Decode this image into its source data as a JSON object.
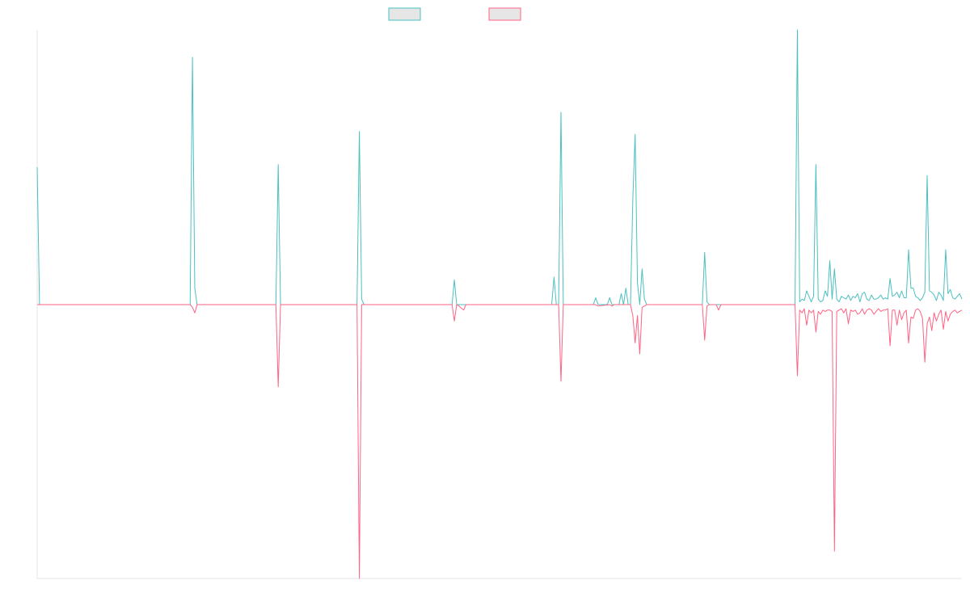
{
  "chart_data": {
    "type": "line",
    "title": "",
    "xlabel": "",
    "ylabel": "",
    "legend": {
      "placement": "top-center"
    },
    "grid": false,
    "colors": {
      "series_a": "#4bc0c0",
      "series_b": "#ff6384",
      "axis": "#e6e6e6",
      "legend_fill": "#e6e6e6"
    },
    "ylim": [
      -1,
      1
    ],
    "x_count": 400,
    "series": [
      {
        "values": [
          [
            0,
            0.5
          ],
          [
            1,
            0
          ],
          [
            66,
            0
          ],
          [
            67,
            0.9
          ],
          [
            68,
            0.06
          ],
          [
            69,
            0
          ],
          [
            103,
            0
          ],
          [
            104,
            0.51
          ],
          [
            105,
            0
          ],
          [
            138,
            0
          ],
          [
            139,
            0.63
          ],
          [
            140,
            0.02
          ],
          [
            141,
            0
          ],
          [
            179,
            0
          ],
          [
            180,
            0.09
          ],
          [
            181,
            0
          ],
          [
            222,
            0
          ],
          [
            223,
            0.1
          ],
          [
            224,
            0
          ],
          [
            225,
            0
          ],
          [
            226,
            0.7
          ],
          [
            227,
            0
          ],
          [
            240,
            0
          ],
          [
            241,
            0.025
          ],
          [
            242,
            0
          ],
          [
            246,
            0
          ],
          [
            247,
            0.025
          ],
          [
            248,
            0
          ],
          [
            251,
            0
          ],
          [
            252,
            0.04
          ],
          [
            253,
            0
          ],
          [
            254,
            0.06
          ],
          [
            255,
            0
          ],
          [
            256,
            0
          ],
          [
            257,
            0.38
          ],
          [
            258,
            0.62
          ],
          [
            259,
            0.08
          ],
          [
            260,
            0
          ],
          [
            261,
            0.13
          ],
          [
            262,
            0.02
          ],
          [
            263,
            0
          ],
          [
            287,
            0
          ],
          [
            288,
            0.19
          ],
          [
            289,
            0.01
          ],
          [
            290,
            0
          ],
          [
            327,
            0
          ],
          [
            328,
            1.0
          ],
          [
            329,
            0.01
          ],
          [
            330,
            0.02
          ],
          [
            331,
            0.015
          ],
          [
            332,
            0.05
          ],
          [
            333,
            0.03
          ],
          [
            334,
            0.01
          ],
          [
            335,
            0.03
          ],
          [
            336,
            0.51
          ],
          [
            337,
            0.02
          ],
          [
            338,
            0.01
          ],
          [
            339,
            0.015
          ],
          [
            340,
            0.05
          ],
          [
            341,
            0.03
          ],
          [
            342,
            0.16
          ],
          [
            343,
            0.02
          ],
          [
            344,
            0.13
          ],
          [
            345,
            0.02
          ],
          [
            346,
            0.01
          ],
          [
            347,
            0.03
          ],
          [
            348,
            0.025
          ],
          [
            349,
            0.02
          ],
          [
            350,
            0.035
          ],
          [
            351,
            0.015
          ],
          [
            352,
            0.03
          ],
          [
            353,
            0.025
          ],
          [
            354,
            0.04
          ],
          [
            355,
            0.01
          ],
          [
            356,
            0.04
          ],
          [
            357,
            0.045
          ],
          [
            358,
            0.02
          ],
          [
            359,
            0.015
          ],
          [
            360,
            0.035
          ],
          [
            361,
            0.02
          ],
          [
            362,
            0.02
          ],
          [
            363,
            0.025
          ],
          [
            364,
            0.035
          ],
          [
            365,
            0.02
          ],
          [
            366,
            0.025
          ],
          [
            367,
            0.02
          ],
          [
            368,
            0.095
          ],
          [
            369,
            0.03
          ],
          [
            370,
            0.035
          ],
          [
            371,
            0.045
          ],
          [
            372,
            0.025
          ],
          [
            373,
            0.05
          ],
          [
            374,
            0.025
          ],
          [
            375,
            0.025
          ],
          [
            376,
            0.2
          ],
          [
            377,
            0.06
          ],
          [
            378,
            0.06
          ],
          [
            379,
            0.03
          ],
          [
            380,
            0.025
          ],
          [
            381,
            0.015
          ],
          [
            382,
            0.025
          ],
          [
            383,
            0.045
          ],
          [
            384,
            0.47
          ],
          [
            385,
            0.05
          ],
          [
            386,
            0.045
          ],
          [
            387,
            0.035
          ],
          [
            388,
            0.015
          ],
          [
            389,
            0.045
          ],
          [
            390,
            0.035
          ],
          [
            391,
            0.015
          ],
          [
            392,
            0.2
          ],
          [
            393,
            0.04
          ],
          [
            394,
            0.055
          ],
          [
            395,
            0.025
          ],
          [
            396,
            0.02
          ],
          [
            397,
            0.03
          ],
          [
            398,
            0.04
          ],
          [
            399,
            0.02
          ]
        ]
      },
      {
        "values": [
          [
            0,
            0
          ],
          [
            66,
            0
          ],
          [
            67,
            -0.01
          ],
          [
            68,
            -0.03
          ],
          [
            69,
            0
          ],
          [
            103,
            0
          ],
          [
            104,
            -0.3
          ],
          [
            105,
            0
          ],
          [
            138,
            0
          ],
          [
            139,
            -1.0
          ],
          [
            140,
            0
          ],
          [
            179,
            0
          ],
          [
            180,
            -0.06
          ],
          [
            181,
            0
          ],
          [
            182,
            -0.005
          ],
          [
            184,
            -0.02
          ],
          [
            185,
            0
          ],
          [
            222,
            0
          ],
          [
            223,
            0
          ],
          [
            224,
            0
          ],
          [
            225,
            0
          ],
          [
            226,
            -0.28
          ],
          [
            227,
            0
          ],
          [
            241,
            0
          ],
          [
            242,
            -0.005
          ],
          [
            247,
            0
          ],
          [
            248,
            -0.005
          ],
          [
            249,
            0
          ],
          [
            255,
            0
          ],
          [
            256,
            0
          ],
          [
            257,
            -0.04
          ],
          [
            258,
            -0.14
          ],
          [
            259,
            -0.04
          ],
          [
            260,
            -0.18
          ],
          [
            261,
            -0.01
          ],
          [
            262,
            -0.005
          ],
          [
            263,
            0
          ],
          [
            287,
            0
          ],
          [
            288,
            -0.13
          ],
          [
            289,
            -0.005
          ],
          [
            290,
            0
          ],
          [
            293,
            0
          ],
          [
            294,
            -0.02
          ],
          [
            295,
            0
          ],
          [
            327,
            0
          ],
          [
            328,
            -0.26
          ],
          [
            329,
            -0.02
          ],
          [
            330,
            -0.03
          ],
          [
            331,
            -0.015
          ],
          [
            332,
            -0.075
          ],
          [
            333,
            -0.02
          ],
          [
            334,
            -0.03
          ],
          [
            335,
            -0.02
          ],
          [
            336,
            -0.1
          ],
          [
            337,
            -0.025
          ],
          [
            338,
            -0.035
          ],
          [
            339,
            -0.02
          ],
          [
            340,
            -0.025
          ],
          [
            341,
            -0.02
          ],
          [
            342,
            -0.02
          ],
          [
            343,
            -0.025
          ],
          [
            344,
            -0.9
          ],
          [
            345,
            -0.025
          ],
          [
            346,
            -0.02
          ],
          [
            347,
            -0.015
          ],
          [
            348,
            -0.03
          ],
          [
            349,
            -0.015
          ],
          [
            350,
            -0.07
          ],
          [
            351,
            -0.02
          ],
          [
            352,
            -0.025
          ],
          [
            353,
            -0.02
          ],
          [
            354,
            -0.035
          ],
          [
            355,
            -0.03
          ],
          [
            356,
            -0.015
          ],
          [
            357,
            -0.035
          ],
          [
            358,
            -0.02
          ],
          [
            359,
            -0.015
          ],
          [
            360,
            -0.02
          ],
          [
            361,
            -0.035
          ],
          [
            362,
            -0.025
          ],
          [
            363,
            -0.015
          ],
          [
            364,
            -0.025
          ],
          [
            365,
            -0.02
          ],
          [
            366,
            -0.02
          ],
          [
            367,
            -0.015
          ],
          [
            368,
            -0.15
          ],
          [
            369,
            -0.02
          ],
          [
            370,
            -0.02
          ],
          [
            371,
            -0.075
          ],
          [
            372,
            -0.02
          ],
          [
            373,
            -0.055
          ],
          [
            374,
            -0.03
          ],
          [
            375,
            -0.02
          ],
          [
            376,
            -0.14
          ],
          [
            377,
            -0.045
          ],
          [
            378,
            -0.05
          ],
          [
            379,
            -0.02
          ],
          [
            380,
            -0.015
          ],
          [
            381,
            -0.025
          ],
          [
            382,
            -0.05
          ],
          [
            383,
            -0.21
          ],
          [
            384,
            -0.07
          ],
          [
            385,
            -0.045
          ],
          [
            386,
            -0.095
          ],
          [
            387,
            -0.03
          ],
          [
            388,
            -0.06
          ],
          [
            389,
            -0.035
          ],
          [
            390,
            -0.02
          ],
          [
            391,
            -0.09
          ],
          [
            392,
            -0.025
          ],
          [
            393,
            -0.06
          ],
          [
            394,
            -0.035
          ],
          [
            395,
            -0.025
          ],
          [
            396,
            -0.02
          ],
          [
            397,
            -0.03
          ],
          [
            398,
            -0.025
          ],
          [
            399,
            -0.02
          ]
        ]
      }
    ]
  }
}
